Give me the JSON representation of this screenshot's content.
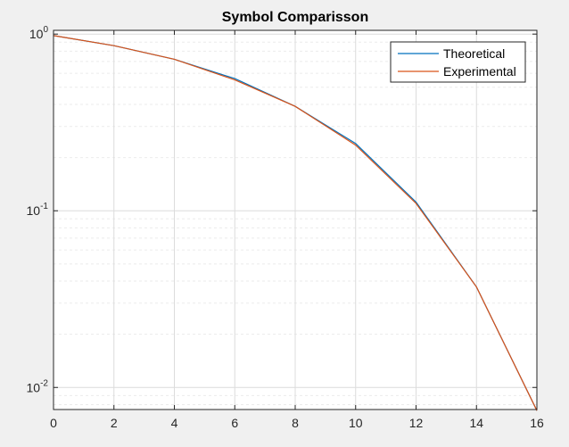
{
  "chart_data": {
    "type": "line",
    "title": "Symbol Comparisson",
    "xlabel": "",
    "ylabel": "",
    "xlim": [
      0,
      16
    ],
    "ylim": [
      0.0075,
      1.05
    ],
    "yscale": "log",
    "grid": true,
    "minor_grid": true,
    "legend_position": "top-right",
    "x_ticks": [
      0,
      2,
      4,
      6,
      8,
      10,
      12,
      14,
      16
    ],
    "y_ticks": [
      {
        "value": 1,
        "base": "10",
        "exp": "0"
      },
      {
        "value": 0.1,
        "base": "10",
        "exp": "-1"
      },
      {
        "value": 0.01,
        "base": "10",
        "exp": "-2"
      }
    ],
    "x": [
      0,
      2,
      4,
      6,
      8,
      10,
      12,
      14,
      16
    ],
    "series": [
      {
        "name": "Theoretical",
        "color": "#0072BD",
        "values": [
          0.98,
          0.86,
          0.72,
          0.56,
          0.39,
          0.24,
          0.112,
          0.037,
          0.0074
        ]
      },
      {
        "name": "Experimental",
        "color": "#D95319",
        "values": [
          0.98,
          0.86,
          0.72,
          0.55,
          0.39,
          0.235,
          0.11,
          0.037,
          0.0074
        ]
      }
    ]
  }
}
